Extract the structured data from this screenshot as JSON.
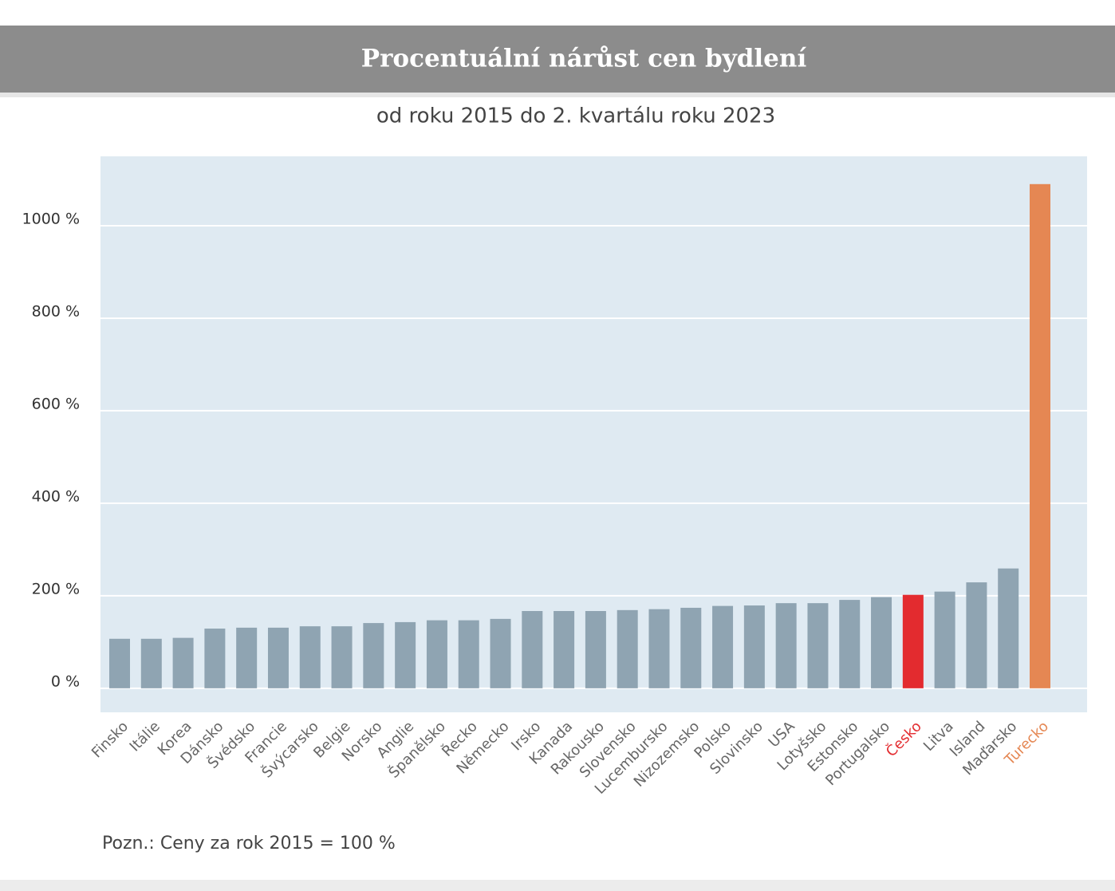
{
  "chart_data": {
    "type": "bar",
    "title": "Procentuální nárůst cen bydlení",
    "subtitle": "od roku 2015 do 2. kvartálu roku 2023",
    "note": "Pozn.: Ceny za rok 2015 = 100 %",
    "categories": [
      "Finsko",
      "Itálie",
      "Korea",
      "Dánsko",
      "Švédsko",
      "Francie",
      "Švýcarsko",
      "Belgie",
      "Norsko",
      "Anglie",
      "Španělsko",
      "Řecko",
      "Německo",
      "Irsko",
      "Kanada",
      "Rakousko",
      "Slovensko",
      "Lucembursko",
      "Nizozemsko",
      "Polsko",
      "Slovinsko",
      "USA",
      "Lotyšsko",
      "Estonsko",
      "Portugalsko",
      "Česko",
      "Litva",
      "Island",
      "Maďarsko",
      "Turecko"
    ],
    "values": [
      107,
      107,
      109,
      129,
      131,
      131,
      134,
      134,
      141,
      143,
      147,
      147,
      150,
      167,
      167,
      167,
      169,
      171,
      174,
      178,
      179,
      184,
      184,
      191,
      197,
      202,
      209,
      229,
      259,
      1090
    ],
    "color": "#8fa4b2",
    "colors": [
      "#8fa4b2",
      "#8fa4b2",
      "#8fa4b2",
      "#8fa4b2",
      "#8fa4b2",
      "#8fa4b2",
      "#8fa4b2",
      "#8fa4b2",
      "#8fa4b2",
      "#8fa4b2",
      "#8fa4b2",
      "#8fa4b2",
      "#8fa4b2",
      "#8fa4b2",
      "#8fa4b2",
      "#8fa4b2",
      "#8fa4b2",
      "#8fa4b2",
      "#8fa4b2",
      "#8fa4b2",
      "#8fa4b2",
      "#8fa4b2",
      "#8fa4b2",
      "#8fa4b2",
      "#8fa4b2",
      "#e32b2f",
      "#8fa4b2",
      "#8fa4b2",
      "#8fa4b2",
      "#e58753"
    ],
    "ylim": [
      -52,
      1150
    ],
    "yticks": [
      {
        "value": 0,
        "label": "0 %"
      },
      {
        "value": 200,
        "label": "200 %"
      },
      {
        "value": 400,
        "label": "400 %"
      },
      {
        "value": 600,
        "label": "600 %"
      },
      {
        "value": 800,
        "label": "800 %"
      },
      {
        "value": 1000,
        "label": "1000 %"
      }
    ],
    "grid": true
  }
}
